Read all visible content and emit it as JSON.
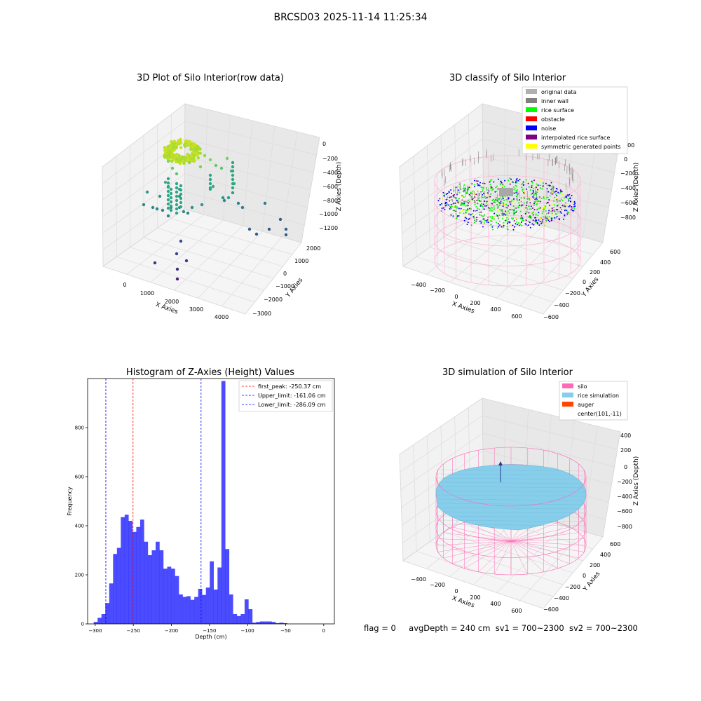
{
  "page": {
    "title": "BRCSD03 2025-11-14 11:25:34"
  },
  "panels": {
    "raw": {
      "title": "3D Plot of Silo Interior(row data)",
      "xlabel": "X Axies",
      "ylabel": "Y Axies",
      "zlabel": "Z Axies (Depth)",
      "x_ticks": [
        "0",
        "1000",
        "2000",
        "3000",
        "4000"
      ],
      "y_ticks": [
        "2000",
        "1000",
        "0",
        "−1000",
        "−2000",
        "−3000"
      ],
      "z_ticks": [
        "0",
        "−200",
        "−400",
        "−600",
        "−800",
        "−1000",
        "−1200"
      ]
    },
    "classify": {
      "title": "3D classify of Silo Interior",
      "xlabel": "X Axies",
      "ylabel": "Y Axies",
      "zlabel": "Z Axies (Depth)",
      "x_ticks": [
        "−400",
        "−200",
        "0",
        "200",
        "400",
        "600"
      ],
      "y_ticks": [
        "600",
        "400",
        "200",
        "0",
        "−200",
        "−400",
        "−600"
      ],
      "z_ticks": [
        "200",
        "0",
        "−200",
        "−400",
        "−600",
        "−800"
      ],
      "legend": [
        {
          "label": "original data",
          "color": "#b0b0b0"
        },
        {
          "label": "inner wall",
          "color": "#808080"
        },
        {
          "label": "rice surface",
          "color": "#00ff00"
        },
        {
          "label": "obstacle",
          "color": "#ff0000"
        },
        {
          "label": "noise",
          "color": "#0000ff"
        },
        {
          "label": "interpolated rice surface",
          "color": "#800080"
        },
        {
          "label": "symmetric generated points",
          "color": "#ffff00"
        }
      ]
    },
    "simulation": {
      "title": "3D simulation of Silo Interior",
      "xlabel": "X Axies",
      "ylabel": "Y Axies",
      "zlabel": "Z Axies (Depth)",
      "x_ticks": [
        "−400",
        "−200",
        "0",
        "200",
        "400",
        "600"
      ],
      "y_ticks": [
        "600",
        "400",
        "200",
        "0",
        "−200",
        "−400",
        "−600"
      ],
      "z_ticks": [
        "400",
        "200",
        "0",
        "−200",
        "−400",
        "−600",
        "−800"
      ],
      "legend": [
        {
          "label": "silo",
          "color": "#ff69b4"
        },
        {
          "label": "rice simulation",
          "color": "#87ceeb"
        },
        {
          "label": "auger",
          "color": "#ff4500"
        },
        {
          "label": "center(101,-11)",
          "color": ""
        }
      ]
    }
  },
  "chart_data": [
    {
      "type": "bar",
      "title": "Histogram of Z-Axies (Height) Values",
      "xlabel": "Depth (cm)",
      "ylabel": "Frequency",
      "xlim": [
        -310,
        14
      ],
      "ylim": [
        0,
        1000
      ],
      "x_ticks": [
        -300,
        -250,
        -200,
        -150,
        -100,
        -50,
        0
      ],
      "x_tick_labels": [
        "−300",
        "−250",
        "−200",
        "−150",
        "−100",
        "−50",
        "0"
      ],
      "y_ticks": [
        0,
        200,
        400,
        600,
        800
      ],
      "bar_color": "#0000ff",
      "bins_start": -302,
      "bin_width": 5.08,
      "values": [
        8,
        25,
        40,
        85,
        165,
        285,
        310,
        435,
        445,
        420,
        375,
        395,
        425,
        335,
        280,
        300,
        335,
        300,
        225,
        233,
        225,
        195,
        120,
        110,
        113,
        98,
        110,
        143,
        118,
        148,
        255,
        140,
        230,
        990,
        305,
        120,
        40,
        32,
        40,
        100,
        60,
        5,
        8,
        10,
        10,
        10,
        8,
        3,
        5,
        3
      ],
      "lines": [
        {
          "label": "first_peak: -250.37 cm",
          "x": -250.37,
          "color": "#ff0000"
        },
        {
          "label": "Upper_limit: -161.06 cm",
          "x": -161.06,
          "color": "#0000ff"
        },
        {
          "label": "Lower_limit: -286.09 cm",
          "x": -286.09,
          "color": "#0000ff"
        }
      ],
      "legend_position": "top-right"
    }
  ],
  "footer": {
    "flag": "flag = 0",
    "avg": "avgDepth = 240 cm",
    "sv1": "sv1 = 700~2300",
    "sv2": "sv2 = 700~2300"
  }
}
